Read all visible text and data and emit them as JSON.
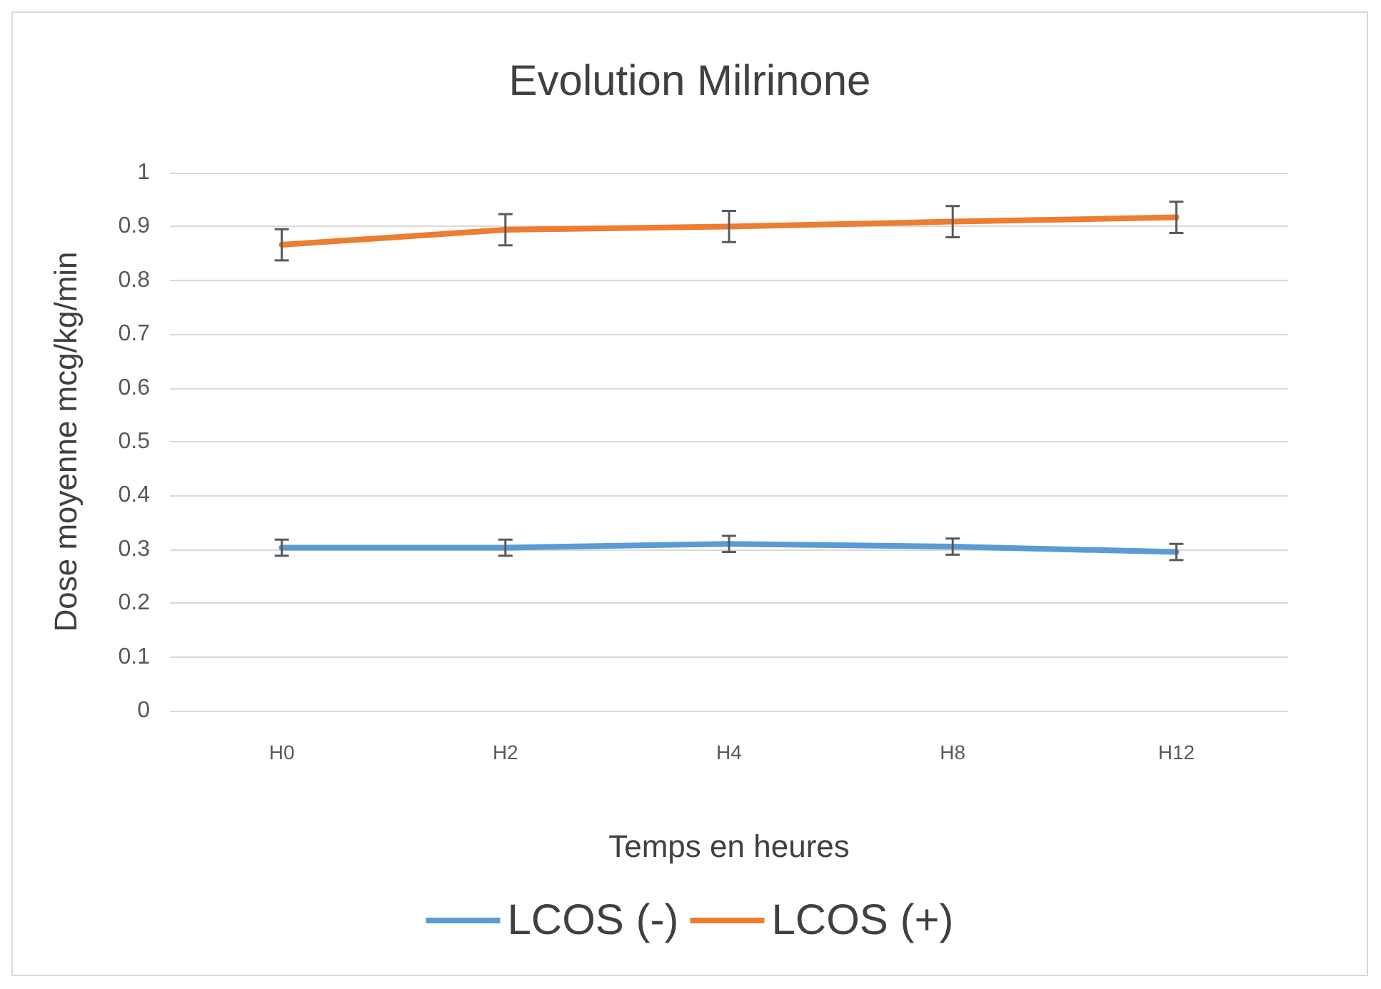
{
  "chart_data": {
    "type": "line",
    "title": "Evolution Milrinone",
    "xlabel": "Temps en heures",
    "ylabel": "Dose moyenne mcg/kg/min",
    "categories": [
      "H0",
      "H2",
      "H4",
      "H8",
      "H12"
    ],
    "series": [
      {
        "name": "LCOS (-)",
        "color": "#5b9bd5",
        "values": [
          0.303,
          0.303,
          0.31,
          0.305,
          0.295
        ],
        "errors": [
          0.015,
          0.015,
          0.015,
          0.015,
          0.015
        ]
      },
      {
        "name": "LCOS (+)",
        "color": "#ed7d31",
        "values": [
          0.866,
          0.894,
          0.9,
          0.909,
          0.917
        ],
        "errors": [
          0.029,
          0.029,
          0.029,
          0.029,
          0.029
        ]
      }
    ],
    "ylim": [
      0,
      1
    ],
    "yticks": [
      0,
      0.1,
      0.2,
      0.3,
      0.4,
      0.5,
      0.6,
      0.7,
      0.8,
      0.9,
      1
    ],
    "grid": "y",
    "legend": "bottom",
    "marker": "none",
    "line_style": "solid"
  }
}
